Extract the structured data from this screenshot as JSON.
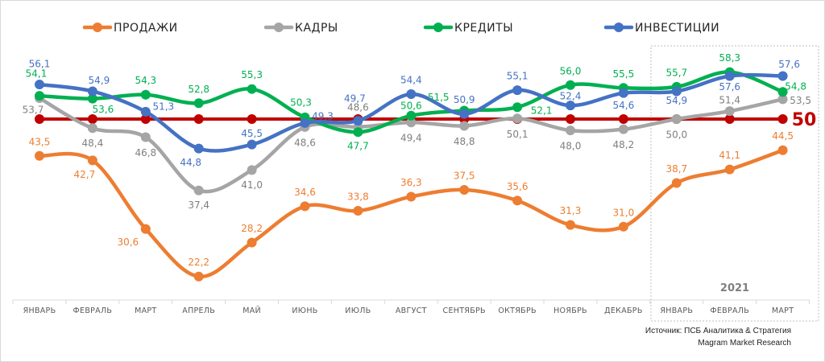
{
  "chart_data": {
    "type": "line",
    "categories": [
      "ЯНВАРЬ",
      "ФЕВРАЛЬ",
      "МАРТ",
      "АПРЕЛЬ",
      "МАЙ",
      "ИЮНЬ",
      "ИЮЛЬ",
      "АВГУСТ",
      "СЕНТЯБРЬ",
      "ОКТЯБРЬ",
      "НОЯБРЬ",
      "ДЕКАБРЬ",
      "ЯНВАРЬ",
      "ФЕВРАЛЬ",
      "МАРТ"
    ],
    "series": [
      {
        "name": "ПРОДАЖИ",
        "color": "#ed7d31",
        "values": [
          43.5,
          42.7,
          30.6,
          22.2,
          28.2,
          34.6,
          33.8,
          36.3,
          37.5,
          35.6,
          31.3,
          31.0,
          38.7,
          41.1,
          44.5
        ]
      },
      {
        "name": "КАДРЫ",
        "color": "#a5a5a5",
        "label_color": "#7f7f7f",
        "values": [
          53.7,
          48.4,
          46.8,
          37.4,
          41.0,
          48.6,
          48.6,
          49.4,
          48.8,
          50.1,
          48.0,
          48.2,
          50.0,
          51.4,
          53.5
        ]
      },
      {
        "name": "КРЕДИТЫ",
        "color": "#00b050",
        "values": [
          54.1,
          53.6,
          54.3,
          52.8,
          55.3,
          50.3,
          47.7,
          50.6,
          51.5,
          52.1,
          56.0,
          55.5,
          55.7,
          58.3,
          54.8
        ]
      },
      {
        "name": "ИНВЕСТИЦИИ",
        "color": "#4472c4",
        "values": [
          56.1,
          54.9,
          51.3,
          44.8,
          45.5,
          49.3,
          49.7,
          54.4,
          50.9,
          55.1,
          52.4,
          54.6,
          54.9,
          57.6,
          57.6
        ]
      }
    ],
    "threshold": {
      "value": 50,
      "label": "50",
      "color": "#c00000"
    },
    "year_group_label": "2021",
    "legend_position": "top",
    "grid": false,
    "ylim": [
      20,
      60
    ]
  },
  "source": {
    "line1": "Источник: ПСБ Аналитика & Стратегия",
    "line2": "Magram Market Research"
  }
}
